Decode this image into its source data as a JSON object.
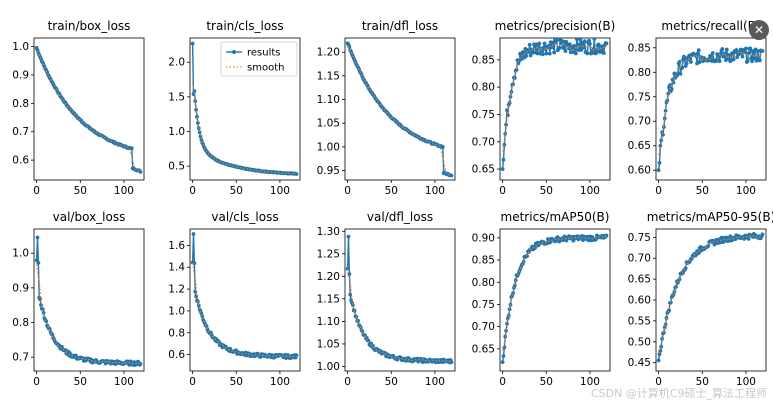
{
  "colors": {
    "results": "#1f77b4",
    "smooth": "#ff7f0e",
    "axis": "#000000"
  },
  "watermark": "CSDN @计算机C9硕士_算法工程师",
  "corner_button_icon": "close-icon",
  "corner_button_glyph": "✕",
  "chart_data": [
    {
      "type": "line",
      "title": "train/box_loss",
      "xlabel": "",
      "ylabel": "",
      "xlim": [
        -3,
        123
      ],
      "ylim": [
        0.53,
        1.03
      ],
      "xticks": [
        0,
        50,
        100
      ],
      "yticks": [
        0.6,
        0.7,
        0.8,
        0.9,
        1.0
      ],
      "ytick_decimals": 1,
      "legend": null,
      "shape": "decay_drop",
      "start": 0.995,
      "mid": 0.64,
      "drop": 0.572,
      "end": 0.56
    },
    {
      "type": "line",
      "title": "train/cls_loss",
      "xlabel": "",
      "ylabel": "",
      "xlim": [
        -3,
        123
      ],
      "ylim": [
        0.3,
        2.35
      ],
      "xticks": [
        0,
        50,
        100
      ],
      "yticks": [
        0.5,
        1.0,
        1.5,
        2.0
      ],
      "ytick_decimals": 1,
      "legend": {
        "position": "top-right",
        "entries": [
          "results",
          "smooth"
        ]
      },
      "shape": "fast_decay",
      "start": 2.27,
      "end": 0.37
    },
    {
      "type": "line",
      "title": "train/dfl_loss",
      "xlabel": "",
      "ylabel": "",
      "xlim": [
        -3,
        123
      ],
      "ylim": [
        0.93,
        1.23
      ],
      "xticks": [
        0,
        50,
        100
      ],
      "yticks": [
        0.95,
        1.0,
        1.05,
        1.1,
        1.15,
        1.2
      ],
      "ytick_decimals": 2,
      "legend": null,
      "shape": "decay_drop",
      "start": 1.22,
      "mid": 1.0,
      "drop": 0.945,
      "end": 0.94
    },
    {
      "type": "line",
      "title": "metrics/precision(B)",
      "xlabel": "",
      "ylabel": "",
      "xlim": [
        -3,
        123
      ],
      "ylim": [
        0.63,
        0.89
      ],
      "xticks": [
        0,
        50,
        100
      ],
      "yticks": [
        0.65,
        0.7,
        0.75,
        0.8,
        0.85
      ],
      "ytick_decimals": 2,
      "legend": null,
      "shape": "rise",
      "start": 0.65,
      "end": 0.875,
      "rate": 9
    },
    {
      "type": "line",
      "title": "metrics/recall(B)",
      "xlabel": "",
      "ylabel": "",
      "xlim": [
        -3,
        123
      ],
      "ylim": [
        0.58,
        0.87
      ],
      "xticks": [
        0,
        50,
        100
      ],
      "yticks": [
        0.6,
        0.65,
        0.7,
        0.75,
        0.8,
        0.85
      ],
      "ytick_decimals": 2,
      "legend": null,
      "shape": "rise",
      "start": 0.6,
      "end": 0.835,
      "rate": 11
    },
    {
      "type": "line",
      "title": "val/box_loss",
      "xlabel": "",
      "ylabel": "",
      "xlim": [
        -3,
        123
      ],
      "ylim": [
        0.66,
        1.07
      ],
      "xticks": [
        0,
        50,
        100
      ],
      "yticks": [
        0.7,
        0.8,
        0.9,
        1.0
      ],
      "ytick_decimals": 1,
      "legend": null,
      "shape": "val_decay",
      "start": 0.98,
      "peak": 1.045,
      "end": 0.68
    },
    {
      "type": "line",
      "title": "val/cls_loss",
      "xlabel": "",
      "ylabel": "",
      "xlim": [
        -3,
        123
      ],
      "ylim": [
        0.45,
        1.75
      ],
      "xticks": [
        0,
        50,
        100
      ],
      "yticks": [
        0.6,
        0.8,
        1.0,
        1.2,
        1.4,
        1.6
      ],
      "ytick_decimals": 1,
      "legend": null,
      "shape": "val_decay",
      "start": 1.45,
      "peak": 1.7,
      "end": 0.575
    },
    {
      "type": "line",
      "title": "val/dfl_loss",
      "xlabel": "",
      "ylabel": "",
      "xlim": [
        -3,
        123
      ],
      "ylim": [
        0.99,
        1.305
      ],
      "xticks": [
        0,
        50,
        100
      ],
      "yticks": [
        1.0,
        1.05,
        1.1,
        1.15,
        1.2,
        1.25,
        1.3
      ],
      "ytick_decimals": 2,
      "legend": null,
      "shape": "val_decay",
      "start": 1.22,
      "peak": 1.29,
      "end": 1.01
    },
    {
      "type": "line",
      "title": "metrics/mAP50(B)",
      "xlabel": "",
      "ylabel": "",
      "xlim": [
        -3,
        123
      ],
      "ylim": [
        0.6,
        0.92
      ],
      "xticks": [
        0,
        50,
        100
      ],
      "yticks": [
        0.65,
        0.7,
        0.75,
        0.8,
        0.85,
        0.9
      ],
      "ytick_decimals": 2,
      "legend": null,
      "shape": "rise",
      "start": 0.62,
      "end": 0.9,
      "rate": 14
    },
    {
      "type": "line",
      "title": "metrics/mAP50-95(B)",
      "xlabel": "",
      "ylabel": "",
      "xlim": [
        -3,
        123
      ],
      "ylim": [
        0.43,
        0.77
      ],
      "xticks": [
        0,
        50,
        100
      ],
      "yticks": [
        0.45,
        0.5,
        0.55,
        0.6,
        0.65,
        0.7,
        0.75
      ],
      "ytick_decimals": 2,
      "legend": null,
      "shape": "rise",
      "start": 0.455,
      "end": 0.755,
      "rate": 22
    }
  ]
}
